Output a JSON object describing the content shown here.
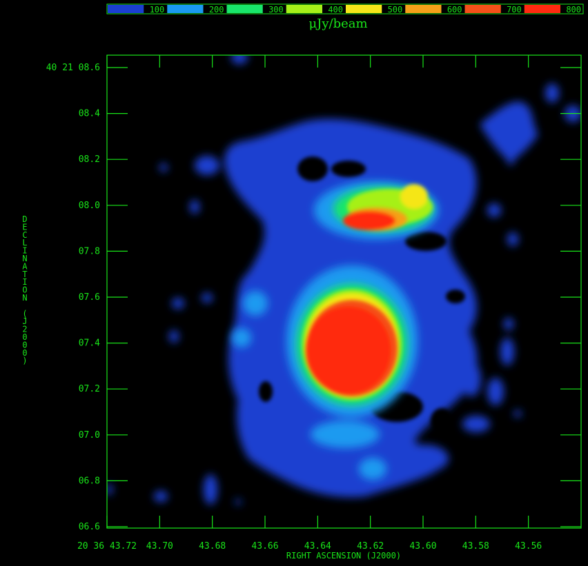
{
  "colorbar": {
    "unit_label": "μJy/beam",
    "bins": [
      {
        "label": "100",
        "color": "#1a3fd0"
      },
      {
        "label": "200",
        "color": "#1a9af0"
      },
      {
        "label": "300",
        "color": "#19e66a"
      },
      {
        "label": "400",
        "color": "#a6f019"
      },
      {
        "label": "500",
        "color": "#f5e619"
      },
      {
        "label": "600",
        "color": "#f5a019"
      },
      {
        "label": "700",
        "color": "#f55019"
      },
      {
        "label": "800",
        "color": "#ff2a10"
      }
    ]
  },
  "axes": {
    "x_title": "RIGHT ASCENSION (J2000)",
    "y_title": "DECLINATION (J2000)",
    "x_ticks": [
      "20 36 43.72",
      "43.70",
      "43.68",
      "43.66",
      "43.64",
      "43.62",
      "43.60",
      "43.58",
      "43.56"
    ],
    "y_ticks": [
      "40 21 08.6",
      "08.4",
      "08.2",
      "08.0",
      "07.8",
      "07.6",
      "07.4",
      "07.2",
      "07.0",
      "06.8",
      "06.6"
    ]
  },
  "colors": {
    "background": "#000000",
    "axis": "#19e619"
  }
}
